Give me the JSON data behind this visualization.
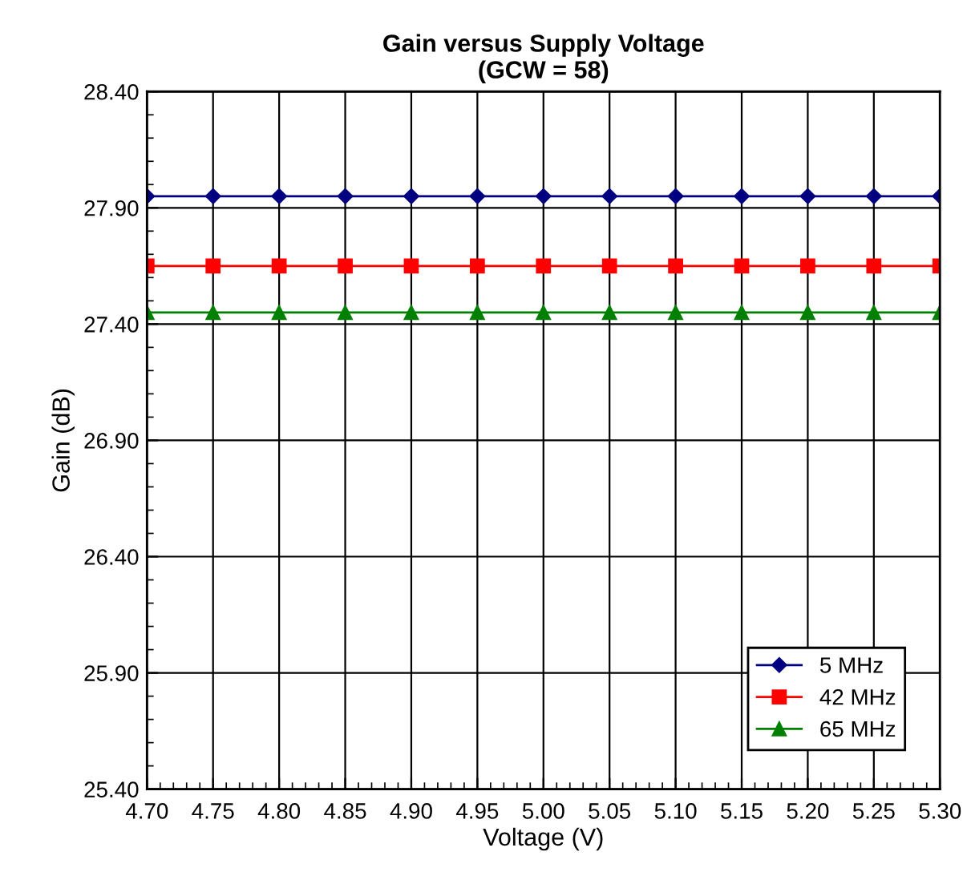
{
  "chart_data": {
    "type": "line",
    "title": "Gain versus Supply Voltage\n(GCW = 58)",
    "xlabel": "Voltage (V)",
    "ylabel": "Gain (dB)",
    "x": [
      4.7,
      4.75,
      4.8,
      4.85,
      4.9,
      4.95,
      5.0,
      5.05,
      5.1,
      5.15,
      5.2,
      5.25,
      5.3
    ],
    "series": [
      {
        "name": "5 MHz",
        "color": "#000080",
        "marker": "diamond",
        "values": [
          27.95,
          27.95,
          27.95,
          27.95,
          27.95,
          27.95,
          27.95,
          27.95,
          27.95,
          27.95,
          27.95,
          27.95,
          27.95
        ]
      },
      {
        "name": "42 MHz",
        "color": "#ff0000",
        "marker": "square",
        "values": [
          27.65,
          27.65,
          27.65,
          27.65,
          27.65,
          27.65,
          27.65,
          27.65,
          27.65,
          27.65,
          27.65,
          27.65,
          27.65
        ]
      },
      {
        "name": "65 MHz",
        "color": "#008000",
        "marker": "triangle",
        "values": [
          27.45,
          27.45,
          27.45,
          27.45,
          27.45,
          27.45,
          27.45,
          27.45,
          27.45,
          27.45,
          27.45,
          27.45,
          27.45
        ]
      }
    ],
    "xlim": [
      4.7,
      5.3
    ],
    "xticks": [
      {
        "value": 4.7,
        "label": "4.70"
      },
      {
        "value": 4.75,
        "label": "4.75"
      },
      {
        "value": 4.8,
        "label": "4.80"
      },
      {
        "value": 4.85,
        "label": "4.85"
      },
      {
        "value": 4.9,
        "label": "4.90"
      },
      {
        "value": 4.95,
        "label": "4.95"
      },
      {
        "value": 5.0,
        "label": "5.00"
      },
      {
        "value": 5.05,
        "label": "5.05"
      },
      {
        "value": 5.1,
        "label": "5.10"
      },
      {
        "value": 5.15,
        "label": "5.15"
      },
      {
        "value": 5.2,
        "label": "5.20"
      },
      {
        "value": 5.25,
        "label": "5.25"
      },
      {
        "value": 5.3,
        "label": "5.30"
      }
    ],
    "ylim": [
      25.4,
      28.4
    ],
    "yticks": [
      {
        "value": 25.4,
        "label": "25.40"
      },
      {
        "value": 25.9,
        "label": "25.90"
      },
      {
        "value": 26.4,
        "label": "26.40"
      },
      {
        "value": 26.9,
        "label": "26.90"
      },
      {
        "value": 27.4,
        "label": "27.40"
      },
      {
        "value": 27.9,
        "label": "27.90"
      },
      {
        "value": 28.4,
        "label": "28.40"
      }
    ],
    "grid": true,
    "legend": "bottom right",
    "line_style": "solid"
  }
}
